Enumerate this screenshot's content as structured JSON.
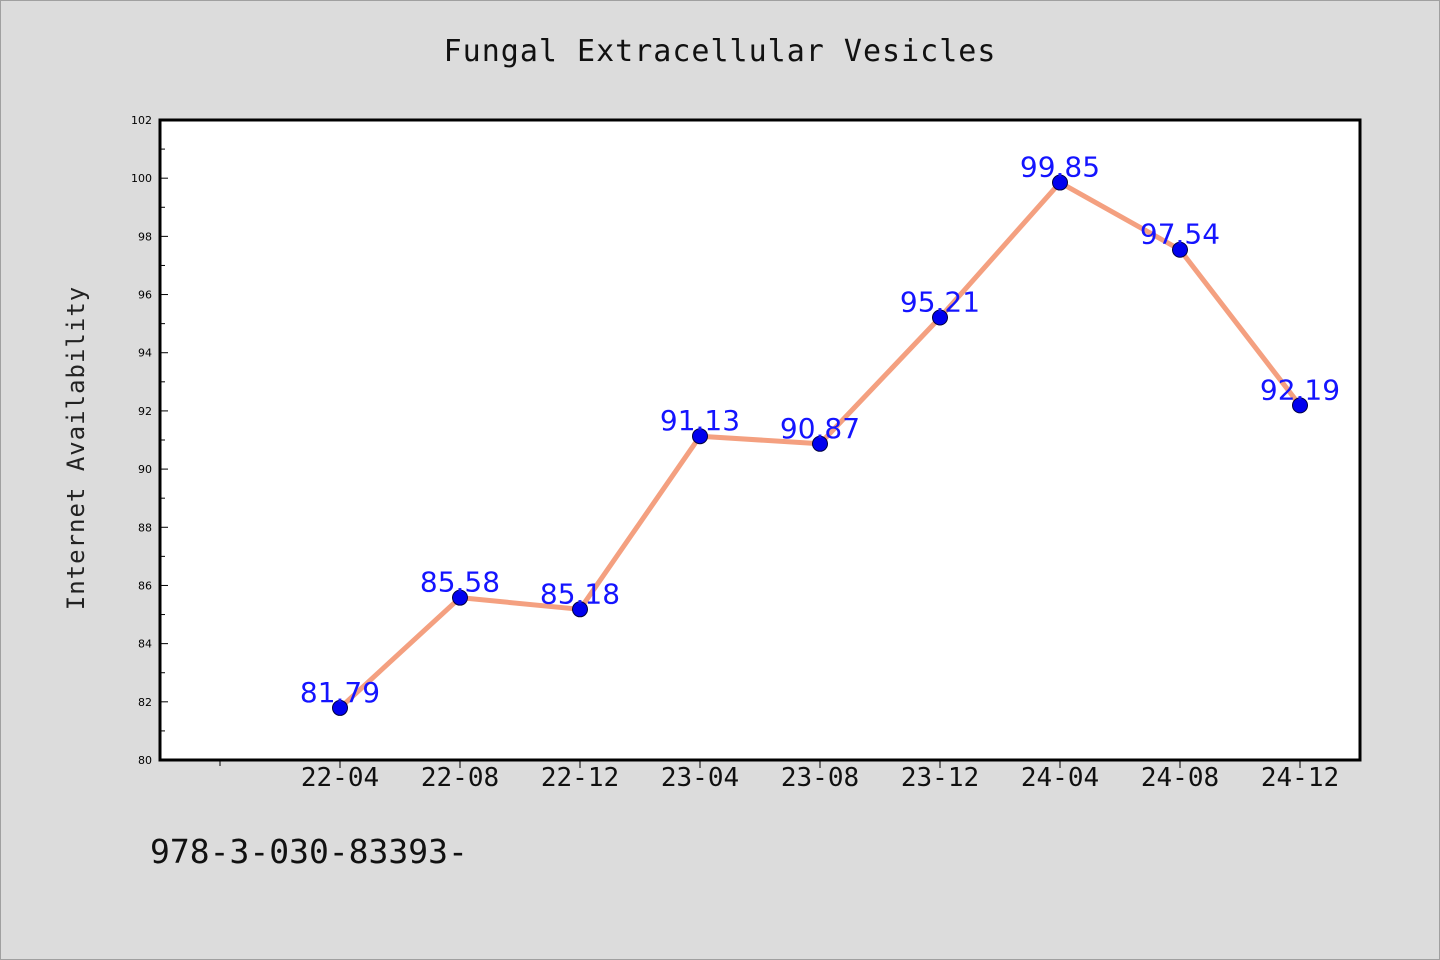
{
  "chart_data": {
    "type": "line",
    "title": "Fungal Extracellular Vesicles",
    "xlabel": "",
    "ylabel": "Internet Availability",
    "categories": [
      "22-04",
      "22-08",
      "22-12",
      "23-04",
      "23-08",
      "23-12",
      "24-04",
      "24-08",
      "24-12"
    ],
    "values": [
      81.79,
      85.58,
      85.18,
      91.13,
      90.87,
      95.21,
      99.85,
      97.54,
      92.19
    ],
    "data_labels": [
      "81.79",
      "85.58",
      "85.18",
      "91.13",
      "90.87",
      "95.21",
      "99.85",
      "97.54",
      "92.19"
    ],
    "ylim": [
      80,
      102
    ],
    "yticks": [
      80,
      82,
      84,
      86,
      88,
      90,
      92,
      94,
      96,
      98,
      100,
      102
    ],
    "grid": false,
    "colors": {
      "line": "#f4a080",
      "marker": "#0000ee",
      "label": "#1414ff",
      "background": "#dcdcdc",
      "plot_bg": "#ffffff"
    }
  },
  "footer_text": "978-3-030-83393-"
}
